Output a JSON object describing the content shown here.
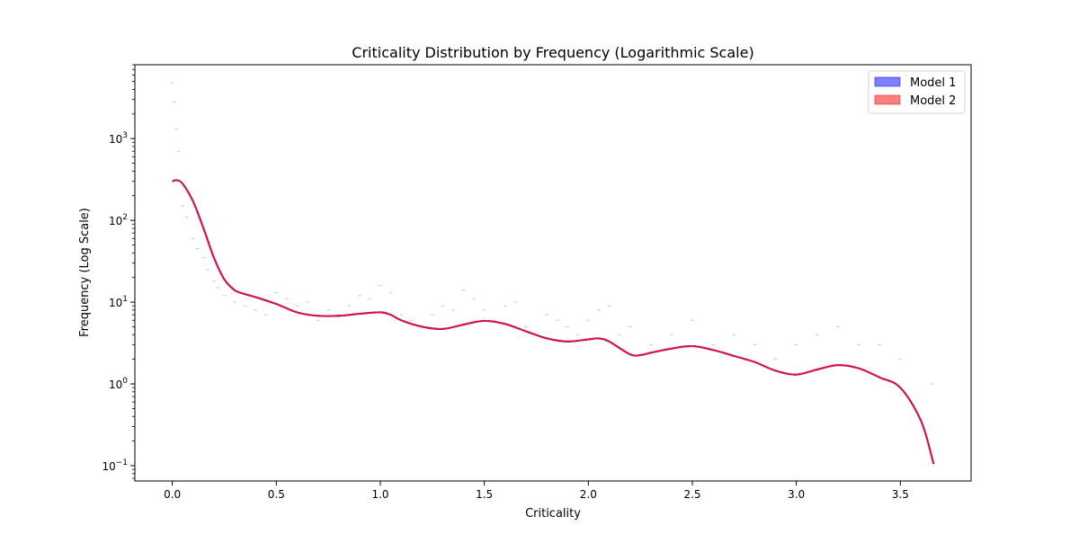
{
  "chart_data": {
    "type": "line",
    "title": "Criticality Distribution by Frequency (Logarithmic Scale)",
    "xlabel": "Criticality",
    "ylabel": "Frequency (Log Scale)",
    "xlim": [
      -0.18,
      3.84
    ],
    "ylim": [
      0.065,
      8000
    ],
    "yscale": "log",
    "grid": false,
    "legend_placement": "top-right",
    "x_ticks": [
      0.0,
      0.5,
      1.0,
      1.5,
      2.0,
      2.5,
      3.0,
      3.5
    ],
    "x_tick_labels": [
      "0.0",
      "0.5",
      "1.0",
      "1.5",
      "2.0",
      "2.5",
      "3.0",
      "3.5"
    ],
    "y_ticks": [
      0.1,
      1,
      10,
      100,
      1000
    ],
    "y_tick_labels": [
      {
        "base": "10",
        "exp": "−1"
      },
      {
        "base": "10",
        "exp": "0"
      },
      {
        "base": "10",
        "exp": "1"
      },
      {
        "base": "10",
        "exp": "2"
      },
      {
        "base": "10",
        "exp": "3"
      }
    ],
    "series": [
      {
        "name": "Model 1",
        "color": "#0000ff",
        "x": [
          0.0,
          0.02,
          0.05,
          0.1,
          0.15,
          0.2,
          0.25,
          0.3,
          0.35,
          0.4,
          0.5,
          0.6,
          0.7,
          0.8,
          0.9,
          1.0,
          1.05,
          1.1,
          1.2,
          1.3,
          1.4,
          1.5,
          1.6,
          1.7,
          1.8,
          1.9,
          2.0,
          2.05,
          2.1,
          2.2,
          2.25,
          2.3,
          2.4,
          2.5,
          2.6,
          2.7,
          2.8,
          2.9,
          3.0,
          3.1,
          3.2,
          3.3,
          3.4,
          3.5,
          3.6,
          3.66
        ],
        "y": [
          300,
          310,
          280,
          170,
          80,
          35,
          19,
          14,
          12.5,
          11.5,
          9.5,
          7.5,
          6.8,
          6.8,
          7.2,
          7.5,
          7.0,
          6.0,
          5.0,
          4.7,
          5.3,
          5.9,
          5.4,
          4.4,
          3.6,
          3.3,
          3.5,
          3.6,
          3.3,
          2.3,
          2.25,
          2.4,
          2.7,
          2.9,
          2.6,
          2.2,
          1.85,
          1.45,
          1.3,
          1.5,
          1.7,
          1.55,
          1.2,
          0.9,
          0.35,
          0.105
        ]
      },
      {
        "name": "Model 2",
        "color": "#ff0000",
        "x": [
          0.0,
          0.02,
          0.05,
          0.1,
          0.15,
          0.2,
          0.25,
          0.3,
          0.35,
          0.4,
          0.5,
          0.6,
          0.7,
          0.8,
          0.9,
          1.0,
          1.05,
          1.1,
          1.2,
          1.3,
          1.4,
          1.5,
          1.6,
          1.7,
          1.8,
          1.9,
          2.0,
          2.05,
          2.1,
          2.2,
          2.25,
          2.3,
          2.4,
          2.5,
          2.6,
          2.7,
          2.8,
          2.9,
          3.0,
          3.1,
          3.2,
          3.3,
          3.4,
          3.5,
          3.6,
          3.66
        ],
        "y": [
          300,
          310,
          280,
          170,
          80,
          35,
          19,
          14,
          12.5,
          11.5,
          9.5,
          7.5,
          6.8,
          6.8,
          7.2,
          7.5,
          7.0,
          6.0,
          5.0,
          4.7,
          5.3,
          5.9,
          5.4,
          4.4,
          3.6,
          3.3,
          3.5,
          3.6,
          3.3,
          2.3,
          2.25,
          2.4,
          2.7,
          2.9,
          2.6,
          2.2,
          1.85,
          1.45,
          1.3,
          1.5,
          1.7,
          1.55,
          1.2,
          0.9,
          0.35,
          0.105
        ]
      }
    ],
    "histogram_ticks": {
      "color": "#c8c8d2",
      "x": [
        0.0,
        0.01,
        0.02,
        0.03,
        0.05,
        0.07,
        0.1,
        0.12,
        0.15,
        0.17,
        0.2,
        0.22,
        0.25,
        0.3,
        0.35,
        0.4,
        0.45,
        0.5,
        0.55,
        0.6,
        0.65,
        0.7,
        0.75,
        0.8,
        0.85,
        0.9,
        0.95,
        1.0,
        1.05,
        1.1,
        1.15,
        1.2,
        1.25,
        1.3,
        1.35,
        1.4,
        1.45,
        1.5,
        1.55,
        1.6,
        1.65,
        1.7,
        1.75,
        1.8,
        1.85,
        1.9,
        1.95,
        2.0,
        2.05,
        2.1,
        2.15,
        2.2,
        2.3,
        2.4,
        2.5,
        2.6,
        2.7,
        2.8,
        2.9,
        3.0,
        3.1,
        3.2,
        3.3,
        3.4,
        3.5,
        3.65
      ],
      "y": [
        4800,
        2800,
        1300,
        700,
        150,
        110,
        60,
        45,
        35,
        25,
        18,
        15,
        12,
        10,
        9,
        8,
        7,
        13,
        11,
        9,
        10,
        6,
        8,
        7,
        9,
        12,
        11,
        16,
        13,
        7,
        6,
        5,
        7,
        9,
        8,
        14,
        11,
        8,
        6,
        9,
        10,
        5,
        4,
        7,
        6,
        5,
        4,
        6,
        8,
        9,
        4,
        5,
        3,
        4,
        6,
        3,
        4,
        3,
        2,
        3,
        4,
        5,
        3,
        3,
        2,
        1
      ]
    }
  }
}
